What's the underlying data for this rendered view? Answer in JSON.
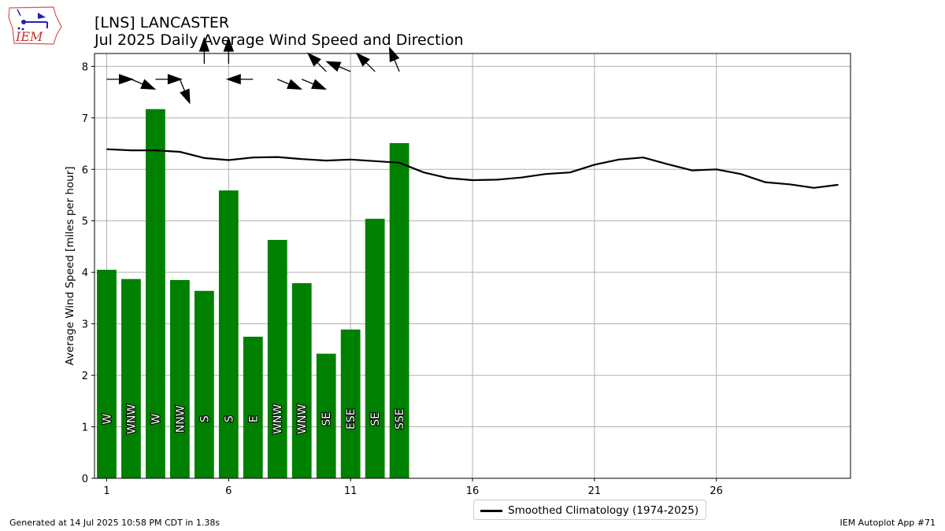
{
  "header": {
    "station": "[LNS] LANCASTER",
    "title": "Jul 2025 Daily Average Wind Speed and Direction"
  },
  "footer": {
    "generated": "Generated at 14 Jul 2025 10:58 PM CDT in 1.38s",
    "app": "IEM Autoplot App #71"
  },
  "logo": {
    "text": "IEM"
  },
  "legend": {
    "label": "Smoothed Climatology (1974-2025)"
  },
  "colors": {
    "bar": "#008000",
    "climo": "#000000",
    "grid": "#b0b0b0"
  },
  "chart_data": {
    "type": "bar",
    "ylabel": "Average Wind Speed [miles per hour]",
    "xlabel": "",
    "ylim": [
      0,
      8.25
    ],
    "xlim": [
      0.5,
      31.5
    ],
    "xticks": [
      1,
      6,
      11,
      16,
      21,
      26
    ],
    "yticks": [
      0,
      1,
      2,
      3,
      4,
      5,
      6,
      7,
      8
    ],
    "grid": true,
    "legend_position": "bottom-center",
    "days": [
      1,
      2,
      3,
      4,
      5,
      6,
      7,
      8,
      9,
      10,
      11,
      12,
      13
    ],
    "values": [
      4.05,
      3.87,
      7.17,
      3.85,
      3.64,
      5.59,
      2.75,
      4.63,
      3.79,
      2.42,
      2.89,
      5.04,
      6.51
    ],
    "directions": [
      "W",
      "WNW",
      "W",
      "NNW",
      "S",
      "S",
      "E",
      "WNW",
      "WNW",
      "SE",
      "ESE",
      "SE",
      "SSE"
    ],
    "arrow_y": [
      7.75,
      7.75,
      7.75,
      7.75,
      8.05,
      8.05,
      7.75,
      7.75,
      7.75,
      7.9,
      7.9,
      7.9,
      7.9
    ],
    "series": [
      {
        "name": "Smoothed Climatology (1974-2025)",
        "x": [
          1,
          2,
          3,
          4,
          5,
          6,
          7,
          8,
          9,
          10,
          11,
          12,
          13,
          14,
          15,
          16,
          17,
          18,
          19,
          20,
          21,
          22,
          23,
          24,
          25,
          26,
          27,
          28,
          29,
          30,
          31
        ],
        "values": [
          6.39,
          6.37,
          6.37,
          6.34,
          6.22,
          6.18,
          6.23,
          6.24,
          6.2,
          6.17,
          6.19,
          6.16,
          6.13,
          5.94,
          5.83,
          5.79,
          5.8,
          5.84,
          5.91,
          5.94,
          6.09,
          6.19,
          6.23,
          6.1,
          5.98,
          6.0,
          5.91,
          5.75,
          5.71,
          5.64,
          5.7
        ]
      }
    ]
  }
}
